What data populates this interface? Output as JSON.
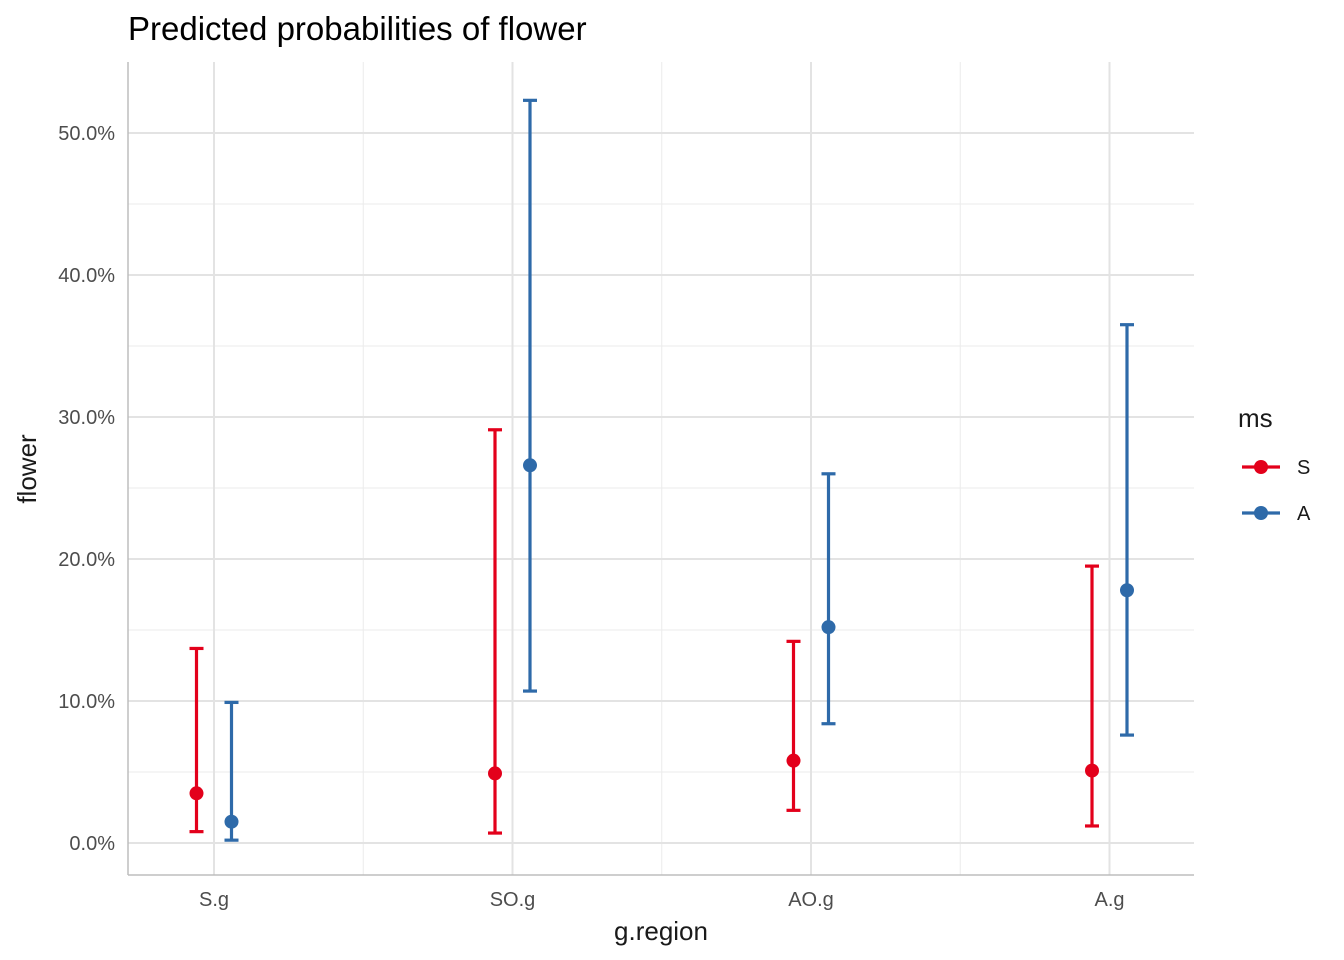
{
  "chart_data": {
    "type": "errorbar",
    "title": "Predicted probabilities of flower",
    "xlabel": "g.region",
    "ylabel": "flower",
    "categories": [
      "S.g",
      "SO.g",
      "AO.g",
      "A.g"
    ],
    "y_ticks": [
      0,
      10,
      20,
      30,
      40,
      50
    ],
    "y_tick_labels": [
      "0.0%",
      "10.0%",
      "20.0%",
      "30.0%",
      "40.0%",
      "50.0%"
    ],
    "ylim": [
      -2.3,
      55
    ],
    "y_unit": "percent",
    "grid": true,
    "legend": {
      "title": "ms",
      "position": "right"
    },
    "series": [
      {
        "name": "S",
        "color": "#E3001B",
        "values": [
          3.5,
          4.9,
          5.8,
          5.1
        ],
        "lower": [
          0.8,
          0.7,
          2.3,
          1.2
        ],
        "upper": [
          13.7,
          29.1,
          14.2,
          19.5
        ]
      },
      {
        "name": "A",
        "color": "#2E6AA9",
        "values": [
          1.5,
          26.6,
          15.2,
          17.8
        ],
        "lower": [
          0.2,
          10.7,
          8.4,
          7.6
        ],
        "upper": [
          9.9,
          52.3,
          26.0,
          36.5
        ]
      }
    ]
  }
}
